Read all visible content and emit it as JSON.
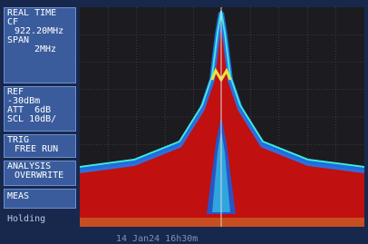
{
  "panel": {
    "sections": [
      {
        "lines": [
          "REAL TIME",
          "CF",
          "922.20MHz",
          "SPAN",
          "2MHz"
        ]
      },
      {
        "lines": [
          "REF",
          "-30dBm",
          "ATT  6dB",
          "SCL 10dB/"
        ]
      },
      {
        "lines": [
          "TRIG",
          "FREE RUN"
        ]
      },
      {
        "lines": [
          "ANALYSIS",
          "OVERWRITE"
        ]
      },
      {
        "lines": [
          "MEAS"
        ]
      }
    ]
  },
  "status": "Holding",
  "timestamp": "14 Jan24 16h30m"
}
